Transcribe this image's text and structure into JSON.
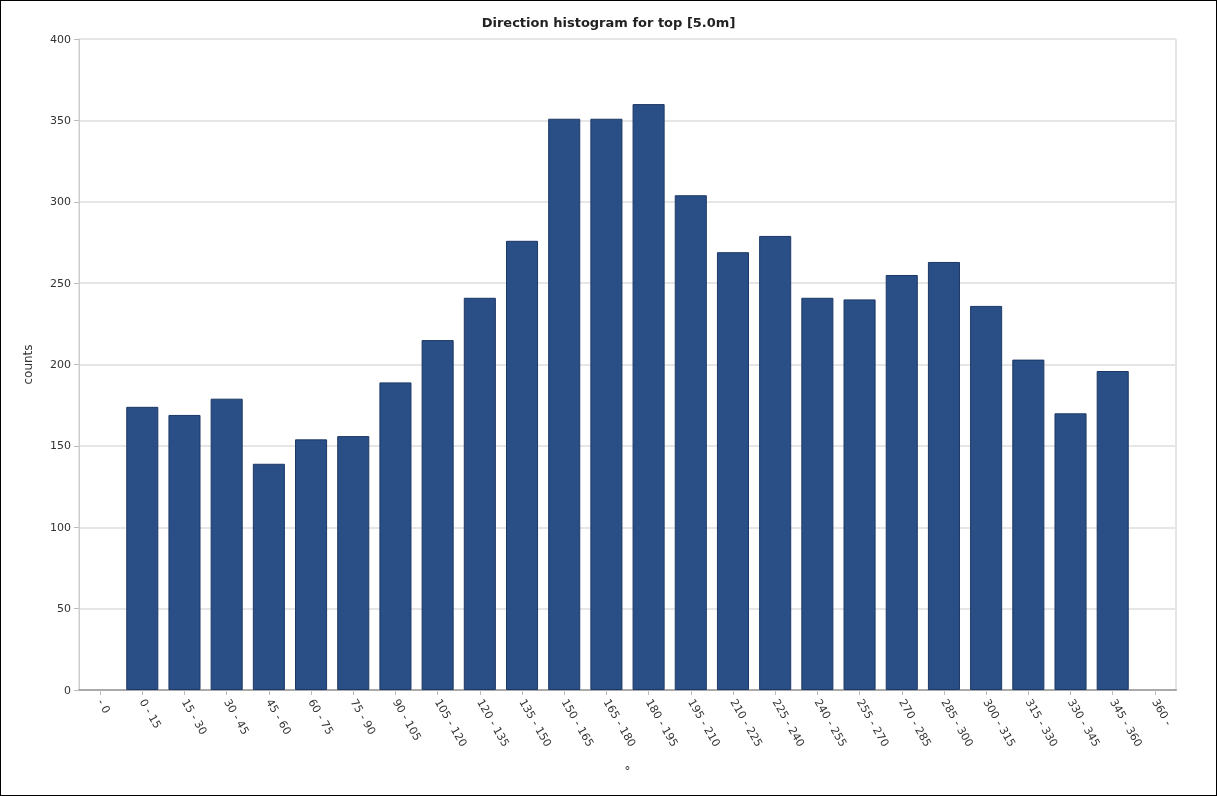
{
  "chart_data": {
    "type": "bar",
    "title": "Direction histogram for top [5.0m]",
    "xlabel": "°",
    "ylabel": "counts",
    "categories": [
      "- 0",
      "0 - 15",
      "15 - 30",
      "30 - 45",
      "45 - 60",
      "60 - 75",
      "75 - 90",
      "90 - 105",
      "105 - 120",
      "120 - 135",
      "135 - 150",
      "150 - 165",
      "165 - 180",
      "180 - 195",
      "195 - 210",
      "210 - 225",
      "225 - 240",
      "240 - 255",
      "255 - 270",
      "270 - 285",
      "285 - 300",
      "300 - 315",
      "315 - 330",
      "330 - 345",
      "345 - 360",
      "360 -"
    ],
    "values": [
      null,
      174,
      169,
      179,
      139,
      154,
      156,
      189,
      215,
      241,
      276,
      351,
      351,
      360,
      304,
      269,
      279,
      241,
      240,
      255,
      263,
      236,
      203,
      170,
      196,
      null
    ],
    "color": "#2a4f86",
    "ylim": [
      0,
      400
    ],
    "yticks": [
      0,
      50,
      100,
      150,
      200,
      250,
      300,
      350,
      400
    ],
    "grid": "y"
  }
}
